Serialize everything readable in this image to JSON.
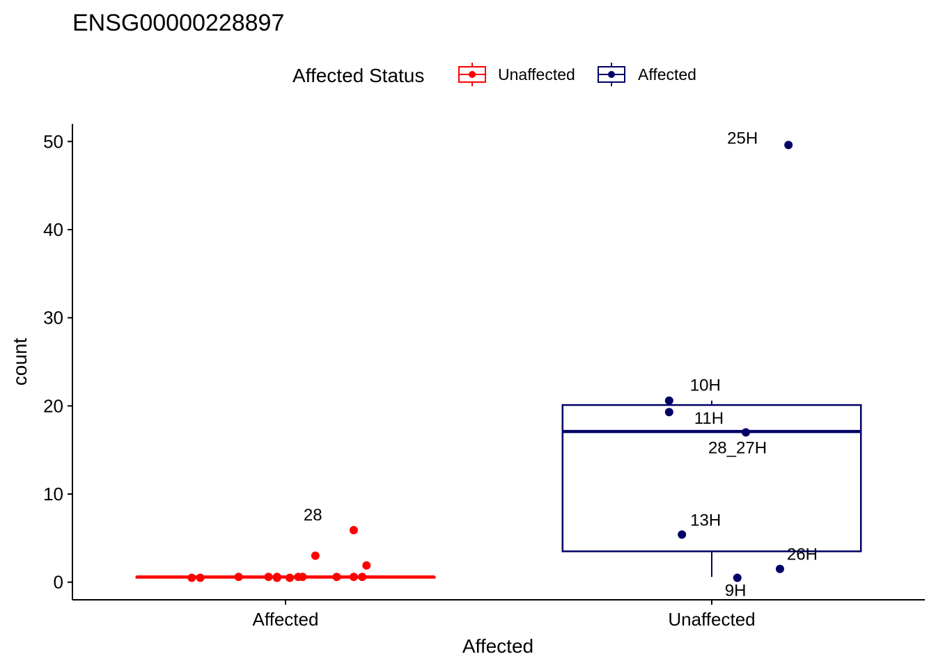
{
  "chart_data": {
    "type": "box",
    "title": "ENSG00000228897",
    "xlabel": "Affected",
    "ylabel": "count",
    "ylim": [
      -2,
      52
    ],
    "yticks": [
      0,
      10,
      20,
      30,
      40,
      50
    ],
    "categories": [
      "Affected",
      "Unaffected"
    ],
    "legend": {
      "title": "Affected Status",
      "position": "top",
      "entries": [
        {
          "name": "Unaffected",
          "color": "#ff0000"
        },
        {
          "name": "Affected",
          "color": "#000066"
        }
      ]
    },
    "grid": false,
    "boxes": [
      {
        "category": "Affected",
        "series": "Unaffected",
        "color": "#ff0000",
        "q1": 0.5,
        "median": 0.6,
        "q3": 0.6,
        "whisker_low": 0.5,
        "whisker_high": 0.6
      },
      {
        "category": "Unaffected",
        "series": "Affected",
        "color": "#000066",
        "q1": 3.5,
        "median": 17.1,
        "q3": 20.1,
        "whisker_low": 0.6,
        "whisker_high": 20.6
      }
    ],
    "points": [
      {
        "category": "Affected",
        "jitter": -0.22,
        "y": 0.5,
        "color": "#ff0000",
        "label": ""
      },
      {
        "category": "Affected",
        "jitter": -0.2,
        "y": 0.5,
        "color": "#ff0000",
        "label": ""
      },
      {
        "category": "Affected",
        "jitter": -0.11,
        "y": 0.6,
        "color": "#ff0000",
        "label": ""
      },
      {
        "category": "Affected",
        "jitter": -0.04,
        "y": 0.6,
        "color": "#ff0000",
        "label": ""
      },
      {
        "category": "Affected",
        "jitter": -0.02,
        "y": 0.6,
        "color": "#ff0000",
        "label": ""
      },
      {
        "category": "Affected",
        "jitter": -0.02,
        "y": 0.5,
        "color": "#ff0000",
        "label": ""
      },
      {
        "category": "Affected",
        "jitter": 0.01,
        "y": 0.5,
        "color": "#ff0000",
        "label": ""
      },
      {
        "category": "Affected",
        "jitter": 0.03,
        "y": 0.6,
        "color": "#ff0000",
        "label": ""
      },
      {
        "category": "Affected",
        "jitter": 0.04,
        "y": 0.6,
        "color": "#ff0000",
        "label": ""
      },
      {
        "category": "Affected",
        "jitter": 0.07,
        "y": 3.0,
        "color": "#ff0000",
        "label": ""
      },
      {
        "category": "Affected",
        "jitter": 0.12,
        "y": 0.6,
        "color": "#ff0000",
        "label": ""
      },
      {
        "category": "Affected",
        "jitter": 0.16,
        "y": 0.6,
        "color": "#ff0000",
        "label": ""
      },
      {
        "category": "Affected",
        "jitter": 0.16,
        "y": 5.9,
        "color": "#ff0000",
        "label": "28"
      },
      {
        "category": "Affected",
        "jitter": 0.18,
        "y": 0.6,
        "color": "#ff0000",
        "label": ""
      },
      {
        "category": "Affected",
        "jitter": 0.19,
        "y": 1.9,
        "color": "#ff0000",
        "label": ""
      },
      {
        "category": "Unaffected",
        "jitter": 0.18,
        "y": 49.6,
        "color": "#000066",
        "label": "25H"
      },
      {
        "category": "Unaffected",
        "jitter": -0.1,
        "y": 19.3,
        "color": "#000066",
        "label": "11H"
      },
      {
        "category": "Unaffected",
        "jitter": -0.1,
        "y": 20.6,
        "color": "#000066",
        "label": "10H"
      },
      {
        "category": "Unaffected",
        "jitter": 0.08,
        "y": 17.0,
        "color": "#000066",
        "label": "28_27H"
      },
      {
        "category": "Unaffected",
        "jitter": -0.07,
        "y": 5.4,
        "color": "#000066",
        "label": "13H"
      },
      {
        "category": "Unaffected",
        "jitter": 0.16,
        "y": 1.5,
        "color": "#000066",
        "label": "26H"
      },
      {
        "category": "Unaffected",
        "jitter": 0.06,
        "y": 0.5,
        "color": "#000066",
        "label": "9H"
      }
    ]
  }
}
